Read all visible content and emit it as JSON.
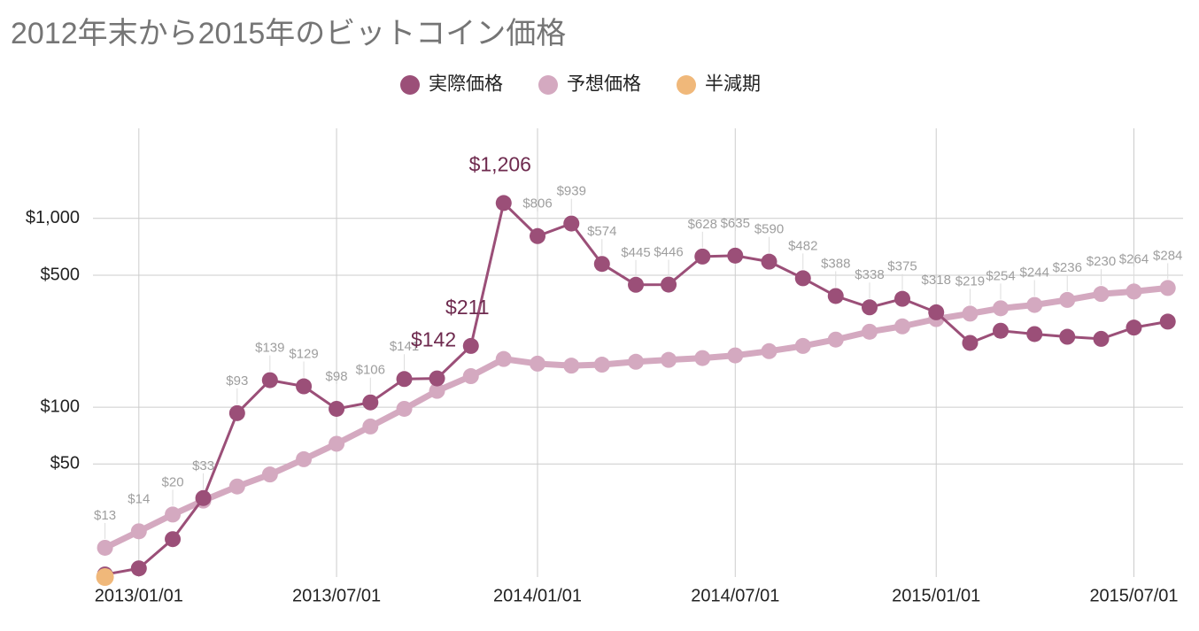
{
  "chart_data": {
    "type": "line",
    "title": "2012年末から2015年のビットコイン価格",
    "x": [
      "2012/12/01",
      "2013/01/01",
      "2013/02/01",
      "2013/03/01",
      "2013/04/01",
      "2013/05/01",
      "2013/06/01",
      "2013/07/01",
      "2013/08/01",
      "2013/09/01",
      "2013/10/01",
      "2013/11/01",
      "2013/12/01",
      "2014/01/01",
      "2014/02/01",
      "2014/03/01",
      "2014/04/01",
      "2014/05/01",
      "2014/06/01",
      "2014/07/01",
      "2014/08/01",
      "2014/09/01",
      "2014/10/01",
      "2014/11/01",
      "2014/12/01",
      "2015/01/01",
      "2015/02/01",
      "2015/03/01",
      "2015/04/01",
      "2015/05/01",
      "2015/06/01",
      "2015/07/01",
      "2015/08/01"
    ],
    "series": [
      {
        "name": "実際価格",
        "color": "#9b4f78",
        "values": [
          13,
          14,
          20,
          33,
          93,
          139,
          129,
          98,
          106,
          141,
          142,
          211,
          1206,
          806,
          939,
          574,
          445,
          446,
          628,
          635,
          590,
          482,
          388,
          338,
          375,
          318,
          219,
          254,
          244,
          236,
          230,
          264,
          284
        ],
        "value_labels": [
          "$13",
          "$14",
          "$20",
          "$33",
          "$93",
          "$139",
          "$129",
          "$98",
          "$106",
          "$141",
          "$142",
          "$211",
          "$1,206",
          "$806",
          "$939",
          "$574",
          "$445",
          "$446",
          "$628",
          "$635",
          "$590",
          "$482",
          "$388",
          "$338",
          "$375",
          "$318",
          "$219",
          "$254",
          "$244",
          "$236",
          "$230",
          "$264",
          "$284"
        ]
      },
      {
        "name": "予想価格",
        "color": "#d4a9c0",
        "values": [
          18,
          22,
          27,
          32,
          38,
          44,
          53,
          64,
          79,
          98,
          122,
          146,
          180,
          170,
          166,
          168,
          174,
          178,
          182,
          188,
          198,
          211,
          228,
          251,
          268,
          293,
          313,
          334,
          348,
          370,
          398,
          410,
          428
        ]
      },
      {
        "name": "半減期",
        "color": "#f0b87a",
        "values": [
          12.6,
          null,
          null,
          null,
          null,
          null,
          null,
          null,
          null,
          null,
          null,
          null,
          null,
          null,
          null,
          null,
          null,
          null,
          null,
          null,
          null,
          null,
          null,
          null,
          null,
          null,
          null,
          null,
          null,
          null,
          null,
          null,
          null
        ]
      }
    ],
    "xlim": [
      "2012/11/20",
      "2015/08/15"
    ],
    "xticks": [
      "2013/01/01",
      "2013/07/01",
      "2014/01/01",
      "2014/07/01",
      "2015/01/01",
      "2015/07/01"
    ],
    "ylim": [
      12.6,
      3000
    ],
    "log_scale": true,
    "yticks": [
      {
        "value": 50,
        "label": "$50"
      },
      {
        "value": 100,
        "label": "$100"
      },
      {
        "value": 500,
        "label": "$500"
      },
      {
        "value": 1000,
        "label": "$1,000"
      }
    ],
    "grid": true,
    "legend": "top"
  }
}
